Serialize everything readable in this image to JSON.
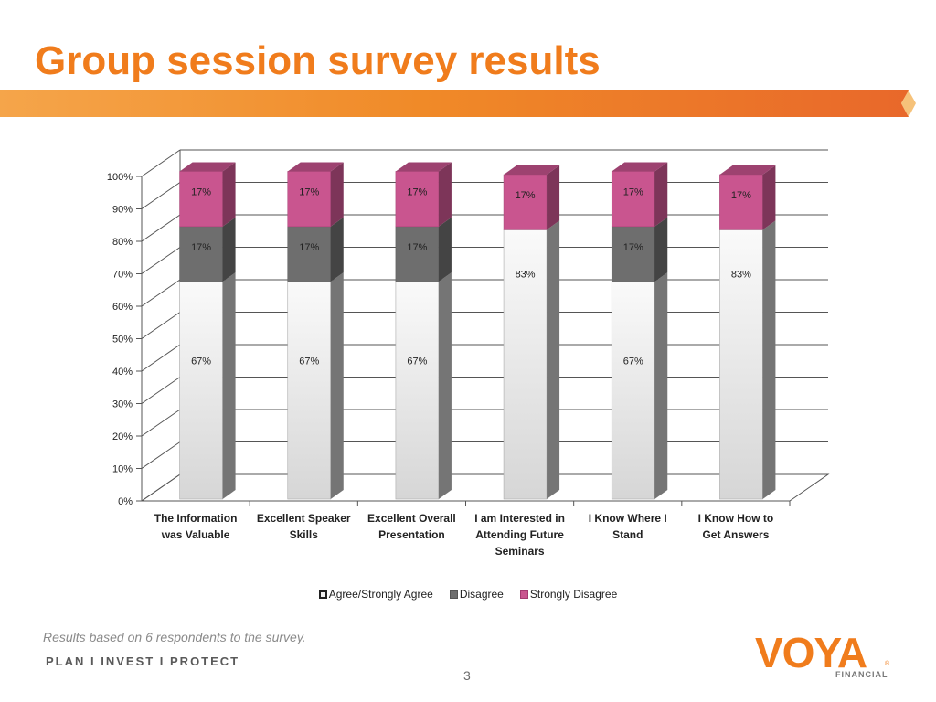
{
  "slide": {
    "title": "Group session survey results",
    "footnote": "Results based on 6 respondents to the survey.",
    "tagline": "PLAN  I  INVEST  I  PROTECT",
    "page_number": "3",
    "logo": {
      "word": "VOYA",
      "sub": "FINANCIAL",
      "reg": "®"
    },
    "colors": {
      "title": "#f07c1c",
      "accent_bar": "#f08a28"
    }
  },
  "chart_data": {
    "type": "bar",
    "stacked": true,
    "three_d": true,
    "categories": [
      [
        "The Information",
        "was Valuable"
      ],
      [
        "Excellent Speaker",
        "Skills"
      ],
      [
        "Excellent Overall",
        "Presentation"
      ],
      [
        "I am Interested in",
        "Attending Future",
        "Seminars"
      ],
      [
        "I Know Where I",
        "Stand"
      ],
      [
        "I Know How to",
        "Get Answers"
      ]
    ],
    "series": [
      {
        "name": "Agree/Strongly Agree",
        "color": "#ececec",
        "values": [
          67,
          67,
          67,
          83,
          67,
          83
        ],
        "labels": [
          "67%",
          "67%",
          "67%",
          "83%",
          "67%",
          "83%"
        ]
      },
      {
        "name": "Disagree",
        "color": "#6e6e6e",
        "values": [
          17,
          17,
          17,
          0,
          17,
          0
        ],
        "labels": [
          "17%",
          "17%",
          "17%",
          "",
          "17%",
          ""
        ]
      },
      {
        "name": "Strongly Disagree",
        "color": "#c9558f",
        "values": [
          17,
          17,
          17,
          17,
          17,
          17
        ],
        "labels": [
          "17%",
          "17%",
          "17%",
          "17%",
          "17%",
          "17%"
        ]
      }
    ],
    "y_ticks": [
      "0%",
      "10%",
      "20%",
      "30%",
      "40%",
      "50%",
      "60%",
      "70%",
      "80%",
      "90%",
      "100%"
    ],
    "ylim": [
      0,
      100
    ],
    "grid": true,
    "legend": "bottom"
  }
}
